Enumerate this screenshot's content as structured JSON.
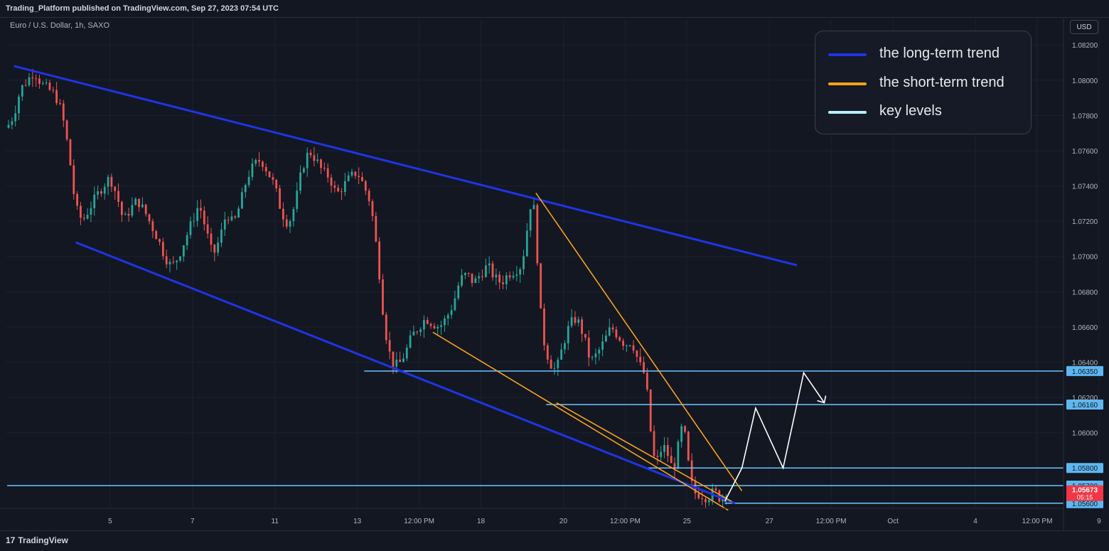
{
  "header": {
    "published": "Trading_Platform published on TradingView.com, Sep 27, 2023 07:54 UTC"
  },
  "symbol": {
    "label": "Euro / U.S. Dollar, 1h, SAXO"
  },
  "currency_button": "USD",
  "footer": {
    "logo_mark": "17",
    "brand": "TradingView"
  },
  "legend": [
    {
      "label": "the long-term trend",
      "color": "#1e35e6"
    },
    {
      "label": "the short-term trend",
      "color": "#f7a21b"
    },
    {
      "label": "key levels",
      "color": "#b8ecff"
    }
  ],
  "chart_data": {
    "type": "candlestick",
    "instrument": "Euro / U.S. Dollar",
    "timeframe": "1h",
    "source": "SAXO",
    "ylim": [
      1.0545,
      1.0835
    ],
    "y_ticks": [
      "1.08200",
      "1.08000",
      "1.07800",
      "1.07600",
      "1.07400",
      "1.07200",
      "1.07000",
      "1.06800",
      "1.06600",
      "1.06400",
      "1.06200",
      "1.06000"
    ],
    "x_ticks": [
      {
        "label": "5",
        "t": 30
      },
      {
        "label": "7",
        "t": 54
      },
      {
        "label": "11",
        "t": 78
      },
      {
        "label": "13",
        "t": 102
      },
      {
        "label": "12:00 PM",
        "t": 120
      },
      {
        "label": "18",
        "t": 138
      },
      {
        "label": "20",
        "t": 162
      },
      {
        "label": "12:00 PM",
        "t": 180
      },
      {
        "label": "25",
        "t": 198
      },
      {
        "label": "27",
        "t": 222
      },
      {
        "label": "12:00 PM",
        "t": 240
      },
      {
        "label": "Oct",
        "t": 258
      },
      {
        "label": "4",
        "t": 282
      },
      {
        "label": "12:00 PM",
        "t": 300
      },
      {
        "label": "9",
        "t": 318
      }
    ],
    "current_price": {
      "value": 1.05673,
      "label": "1.05673",
      "countdown": "05:15"
    },
    "key_levels": [
      {
        "value": 1.0635,
        "label": "1.06350"
      },
      {
        "value": 1.0616,
        "label": "1.06160"
      },
      {
        "value": 1.058,
        "label": "1.05800"
      },
      {
        "value": 1.057,
        "label": "1.05700"
      },
      {
        "value": 1.056,
        "label": "1.05600"
      }
    ],
    "long_term_trend": [
      {
        "from": [
          2,
          1.0808
        ],
        "to": [
          230,
          1.0695
        ]
      },
      {
        "from": [
          20,
          1.0708
        ],
        "to": [
          212,
          1.056
        ]
      }
    ],
    "short_term_trend": [
      {
        "from": [
          154,
          1.0736
        ],
        "to": [
          214,
          1.0567
        ]
      },
      {
        "from": [
          124,
          1.0657
        ],
        "to": [
          210,
          1.0556
        ]
      },
      {
        "from": [
          160,
          1.0617
        ],
        "to": [
          211,
          1.0561
        ]
      }
    ],
    "projection": [
      [
        209,
        1.0561
      ],
      [
        214,
        1.058
      ],
      [
        218,
        1.0614
      ],
      [
        226,
        1.058
      ],
      [
        232,
        1.0634
      ],
      [
        238,
        1.0617
      ]
    ],
    "price_path": [
      [
        0,
        1.0773
      ],
      [
        2,
        1.078
      ],
      [
        4,
        1.0795
      ],
      [
        6,
        1.08
      ],
      [
        8,
        1.0805
      ],
      [
        10,
        1.0798
      ],
      [
        12,
        1.0795
      ],
      [
        14,
        1.0792
      ],
      [
        16,
        1.0782
      ],
      [
        18,
        1.076
      ],
      [
        20,
        1.0728
      ],
      [
        22,
        1.072
      ],
      [
        24,
        1.0727
      ],
      [
        26,
        1.0734
      ],
      [
        28,
        1.074
      ],
      [
        30,
        1.0745
      ],
      [
        32,
        1.0735
      ],
      [
        34,
        1.072
      ],
      [
        36,
        1.0727
      ],
      [
        38,
        1.0732
      ],
      [
        40,
        1.0726
      ],
      [
        42,
        1.0718
      ],
      [
        44,
        1.071
      ],
      [
        46,
        1.07
      ],
      [
        48,
        1.0694
      ],
      [
        50,
        1.07
      ],
      [
        52,
        1.071
      ],
      [
        54,
        1.072
      ],
      [
        56,
        1.073
      ],
      [
        58,
        1.0715
      ],
      [
        60,
        1.07
      ],
      [
        62,
        1.071
      ],
      [
        64,
        1.0725
      ],
      [
        66,
        1.0718
      ],
      [
        68,
        1.073
      ],
      [
        70,
        1.0745
      ],
      [
        72,
        1.0752
      ],
      [
        74,
        1.0755
      ],
      [
        76,
        1.0748
      ],
      [
        78,
        1.074
      ],
      [
        80,
        1.0725
      ],
      [
        82,
        1.0718
      ],
      [
        84,
        1.073
      ],
      [
        86,
        1.075
      ],
      [
        88,
        1.076
      ],
      [
        90,
        1.0755
      ],
      [
        92,
        1.0748
      ],
      [
        94,
        1.0745
      ],
      [
        96,
        1.0735
      ],
      [
        98,
        1.074
      ],
      [
        100,
        1.0745
      ],
      [
        102,
        1.0748
      ],
      [
        104,
        1.074
      ],
      [
        106,
        1.073
      ],
      [
        108,
        1.07
      ],
      [
        110,
        1.066
      ],
      [
        112,
        1.064
      ],
      [
        114,
        1.0638
      ],
      [
        116,
        1.0645
      ],
      [
        118,
        1.0655
      ],
      [
        120,
        1.066
      ],
      [
        122,
        1.0665
      ],
      [
        124,
        1.0662
      ],
      [
        126,
        1.066
      ],
      [
        128,
        1.0665
      ],
      [
        130,
        1.0673
      ],
      [
        132,
        1.0687
      ],
      [
        134,
        1.069
      ],
      [
        136,
        1.0685
      ],
      [
        138,
        1.069
      ],
      [
        140,
        1.0695
      ],
      [
        142,
        1.0688
      ],
      [
        144,
        1.0685
      ],
      [
        146,
        1.069
      ],
      [
        148,
        1.0692
      ],
      [
        150,
        1.0695
      ],
      [
        152,
        1.0722
      ],
      [
        153,
        1.0736
      ],
      [
        154,
        1.0718
      ],
      [
        155,
        1.068
      ],
      [
        156,
        1.0655
      ],
      [
        158,
        1.064
      ],
      [
        160,
        1.0635
      ],
      [
        162,
        1.065
      ],
      [
        164,
        1.0662
      ],
      [
        166,
        1.0665
      ],
      [
        168,
        1.0655
      ],
      [
        170,
        1.064
      ],
      [
        172,
        1.0645
      ],
      [
        174,
        1.0652
      ],
      [
        176,
        1.066
      ],
      [
        178,
        1.0655
      ],
      [
        180,
        1.065
      ],
      [
        182,
        1.0652
      ],
      [
        184,
        1.064
      ],
      [
        186,
        1.0632
      ],
      [
        187,
        1.0612
      ],
      [
        188,
        1.059
      ],
      [
        189,
        1.0582
      ],
      [
        190,
        1.0587
      ],
      [
        191,
        1.0593
      ],
      [
        192,
        1.059
      ],
      [
        193,
        1.0585
      ],
      [
        194,
        1.0578
      ],
      [
        195,
        1.0586
      ],
      [
        196,
        1.0598
      ],
      [
        197,
        1.0606
      ],
      [
        198,
        1.059
      ],
      [
        199,
        1.0575
      ],
      [
        200,
        1.0566
      ],
      [
        202,
        1.0565
      ],
      [
        204,
        1.0563
      ],
      [
        206,
        1.0567
      ],
      [
        208,
        1.0562
      ],
      [
        209,
        1.0567
      ]
    ]
  }
}
